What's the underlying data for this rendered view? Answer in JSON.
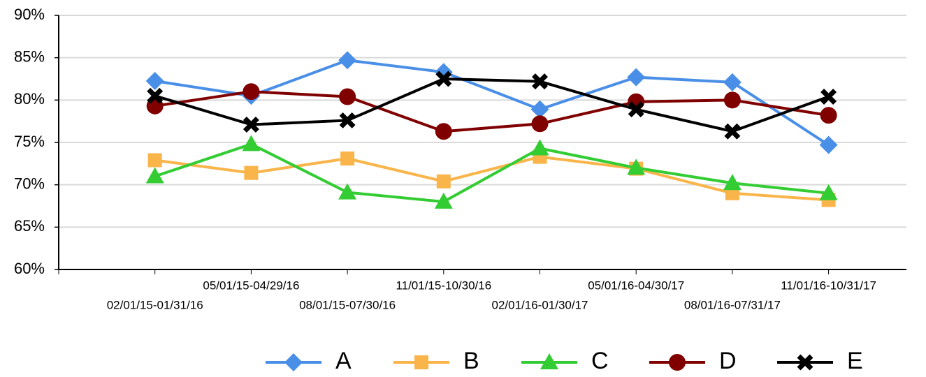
{
  "chart_data": {
    "type": "line",
    "categories": [
      "02/01/15-01/31/16",
      "05/01/15-04/29/16",
      "08/01/15-07/30/16",
      "11/01/15-10/30/16",
      "02/01/16-01/30/17",
      "05/01/16-04/30/17",
      "08/01/16-07/31/17",
      "11/01/16-10/31/17"
    ],
    "series": [
      {
        "name": "A",
        "color": "#4a8fe7",
        "marker": "diamond",
        "values": [
          82.25,
          80.5,
          84.7,
          83.3,
          78.9,
          82.7,
          82.1,
          74.7
        ]
      },
      {
        "name": "B",
        "color": "#f9b44a",
        "marker": "square",
        "values": [
          72.9,
          71.4,
          73.1,
          70.4,
          73.3,
          71.9,
          69.0,
          68.2
        ]
      },
      {
        "name": "C",
        "color": "#33cc33",
        "marker": "triangle",
        "values": [
          71.0,
          74.8,
          69.1,
          68.0,
          74.3,
          72.0,
          70.2,
          69.0
        ]
      },
      {
        "name": "D",
        "color": "#800000",
        "marker": "circle",
        "values": [
          79.3,
          81.0,
          80.4,
          76.3,
          77.2,
          79.8,
          80.0,
          78.2
        ]
      },
      {
        "name": "E",
        "color": "#000000",
        "marker": "x",
        "values": [
          80.5,
          77.1,
          77.6,
          82.5,
          82.2,
          78.9,
          76.3,
          80.4
        ]
      }
    ],
    "ylim": [
      60,
      90
    ],
    "yticks": [
      {
        "value": 60,
        "label": "60%"
      },
      {
        "value": 65,
        "label": "65%"
      },
      {
        "value": 70,
        "label": "70%"
      },
      {
        "value": 75,
        "label": "75%"
      },
      {
        "value": 80,
        "label": "80%"
      },
      {
        "value": 85,
        "label": "85%"
      },
      {
        "value": 90,
        "label": "90%"
      }
    ],
    "grid": true,
    "legend": "bottom"
  }
}
